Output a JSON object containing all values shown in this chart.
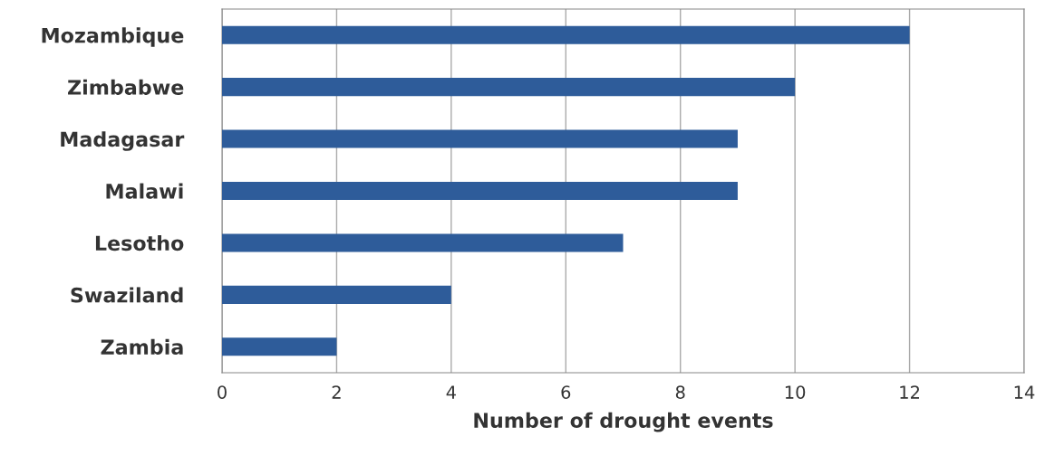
{
  "chart_data": {
    "type": "bar",
    "orientation": "horizontal",
    "xlabel": "Number of drought events",
    "categories": [
      "Mozambique",
      "Zimbabwe",
      "Madagasar",
      "Malawi",
      "Lesotho",
      "Swaziland",
      "Zambia"
    ],
    "values": [
      12,
      10,
      9,
      9,
      7,
      4,
      2
    ],
    "color": "#2e5c9a",
    "xlim": [
      0,
      14
    ],
    "xticks": [
      0,
      2,
      4,
      6,
      8,
      10,
      12,
      14
    ],
    "grid": "x"
  }
}
